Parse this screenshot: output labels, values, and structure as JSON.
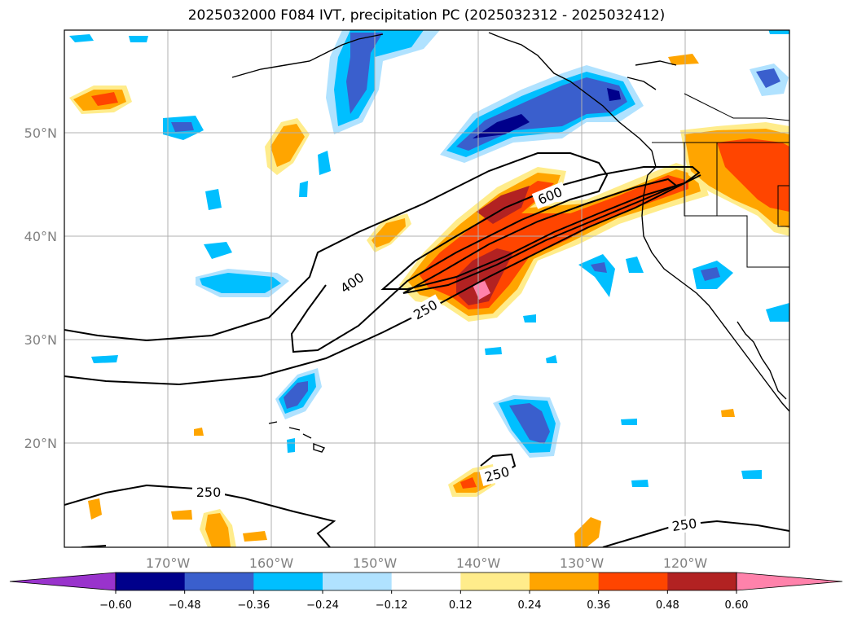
{
  "title": "2025032000 F084 IVT, precipitation PC (2025032312 - 2025032412)",
  "map": {
    "lat_labels": [
      "50°N",
      "40°N",
      "30°N",
      "20°N"
    ],
    "lat_values": [
      50,
      40,
      30,
      20
    ],
    "lon_labels": [
      "170°W",
      "160°W",
      "150°W",
      "140°W",
      "130°W",
      "120°W"
    ],
    "lon_values": [
      -170,
      -160,
      -150,
      -140,
      -130,
      -120
    ],
    "extent": {
      "lon_min": -180,
      "lon_max": -110,
      "lat_min": 10,
      "lat_max": 60
    },
    "contour_labels": [
      "600",
      "400",
      "250",
      "250",
      "250",
      "250"
    ],
    "contour_levels": [
      250,
      400,
      600
    ],
    "grid": true
  },
  "colorbar": {
    "tick_labels": [
      "−0.60",
      "−0.48",
      "−0.36",
      "−0.24",
      "−0.12",
      "0.12",
      "0.24",
      "0.36",
      "0.48",
      "0.60"
    ],
    "ticks": [
      -0.6,
      -0.48,
      -0.36,
      -0.24,
      -0.12,
      0.12,
      0.24,
      0.36,
      0.48,
      0.6
    ],
    "colors": [
      "#9933cc",
      "#00008b",
      "#3a5fcd",
      "#00bfff",
      "#b0e2ff",
      "#ffffff",
      "#ffec8b",
      "#ffa500",
      "#ff4500",
      "#b22222",
      "#ff82ab"
    ],
    "extend": "both",
    "orientation": "horizontal"
  }
}
